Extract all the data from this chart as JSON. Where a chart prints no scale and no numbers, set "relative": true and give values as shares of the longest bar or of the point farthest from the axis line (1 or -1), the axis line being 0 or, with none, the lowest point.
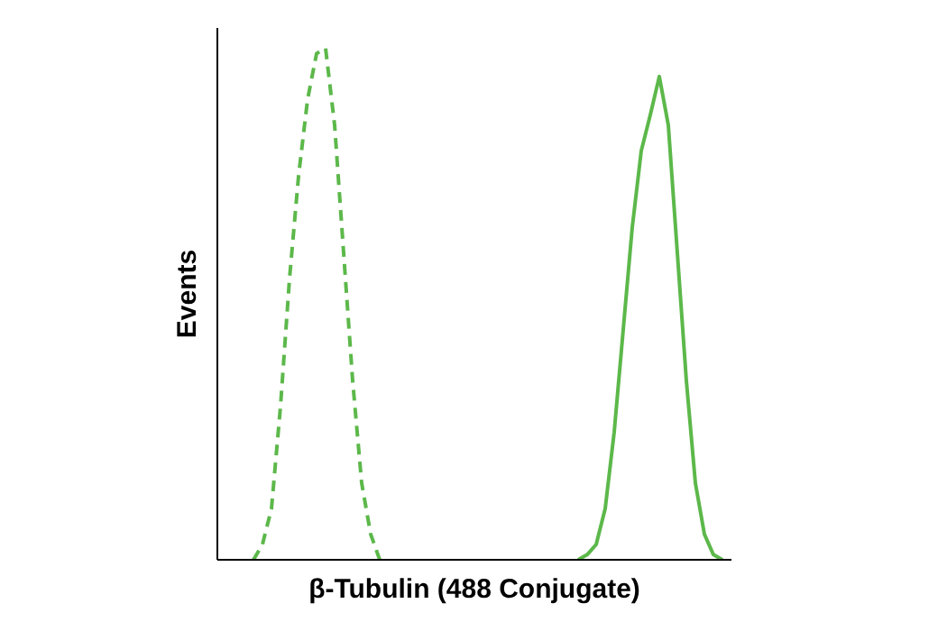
{
  "chart_data": {
    "type": "line",
    "relative": true,
    "xlabel": "β-Tubulin (488 Conjugate)",
    "ylabel": "Events",
    "marker": "none",
    "categories": [
      null,
      null,
      null,
      null,
      null,
      null,
      null,
      null,
      null,
      null,
      null,
      null,
      null,
      null,
      null,
      null,
      null,
      null,
      null,
      null,
      null,
      null,
      null,
      null,
      null,
      null,
      null,
      null,
      null,
      null,
      null,
      null,
      null,
      null,
      null,
      null,
      null,
      null,
      null,
      null,
      null,
      null,
      null,
      null,
      null,
      null,
      null,
      null,
      null,
      null,
      null,
      null,
      null,
      null,
      null,
      null,
      null,
      null
    ],
    "series": [
      {
        "color": "#5cb84a",
        "line_style": "dashed",
        "values": [
          null,
          null,
          null,
          null,
          0,
          0.03,
          0.1,
          0.3,
          0.55,
          0.75,
          0.9,
          0.99,
          1.0,
          0.85,
          0.6,
          0.35,
          0.15,
          0.05,
          0,
          null,
          null,
          null,
          null,
          null,
          null,
          null,
          null,
          null,
          null,
          null,
          null,
          null,
          null,
          null,
          null,
          null,
          null,
          null,
          null,
          null,
          null,
          null,
          null,
          null,
          null,
          null,
          null,
          null,
          null,
          null,
          null,
          null,
          null,
          null,
          null,
          null,
          null,
          null
        ]
      },
      {
        "color": "#5cb84a",
        "line_style": "solid",
        "values": [
          null,
          null,
          null,
          null,
          null,
          null,
          null,
          null,
          null,
          null,
          null,
          null,
          null,
          null,
          null,
          null,
          null,
          null,
          null,
          null,
          null,
          null,
          null,
          null,
          null,
          null,
          null,
          null,
          null,
          null,
          null,
          null,
          null,
          null,
          null,
          null,
          null,
          null,
          null,
          null,
          0,
          0.01,
          0.03,
          0.1,
          0.25,
          0.45,
          0.65,
          0.8,
          0.87,
          0.945,
          0.85,
          0.6,
          0.35,
          0.15,
          0.05,
          0.01,
          0,
          null
        ]
      }
    ]
  }
}
